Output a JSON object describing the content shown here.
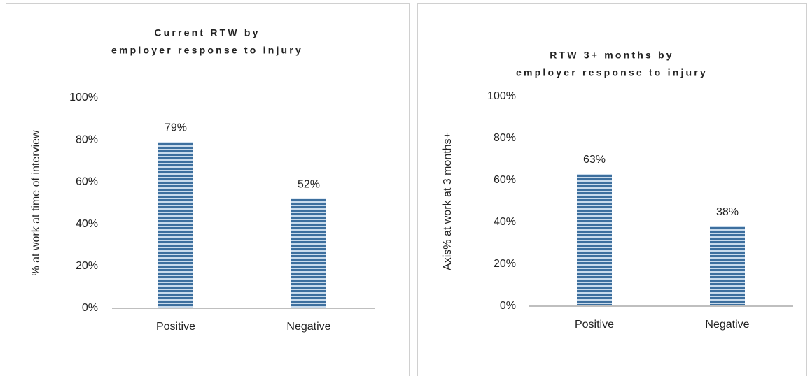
{
  "chart_data": [
    {
      "type": "bar",
      "title": [
        "Current RTW by",
        "employer response to injury"
      ],
      "y_label": "% at work at time of interview",
      "categories": [
        "Positive",
        "Negative"
      ],
      "values": [
        79,
        52
      ],
      "value_labels": [
        "79%",
        "52%"
      ],
      "color": "#4a7eb0",
      "ylim": [
        0,
        100
      ],
      "yticks": [
        {
          "value": 0,
          "label": "0%"
        },
        {
          "value": 20,
          "label": "20%"
        },
        {
          "value": 40,
          "label": "40%"
        },
        {
          "value": 60,
          "label": "60%"
        },
        {
          "value": 80,
          "label": "80%"
        },
        {
          "value": 100,
          "label": "100%"
        }
      ]
    },
    {
      "type": "bar",
      "title": [
        "RTW 3+ months by",
        "employer response to injury"
      ],
      "y_label": "Axis% at work at 3 months+",
      "categories": [
        "Positive",
        "Negative"
      ],
      "values": [
        63,
        38
      ],
      "value_labels": [
        "63%",
        "38%"
      ],
      "color": "#4a7eb0",
      "ylim": [
        0,
        100
      ],
      "yticks": [
        {
          "value": 0,
          "label": "0%"
        },
        {
          "value": 20,
          "label": "20%"
        },
        {
          "value": 40,
          "label": "40%"
        },
        {
          "value": 60,
          "label": "60%"
        },
        {
          "value": 80,
          "label": "80%"
        },
        {
          "value": 100,
          "label": "100%"
        }
      ]
    }
  ]
}
